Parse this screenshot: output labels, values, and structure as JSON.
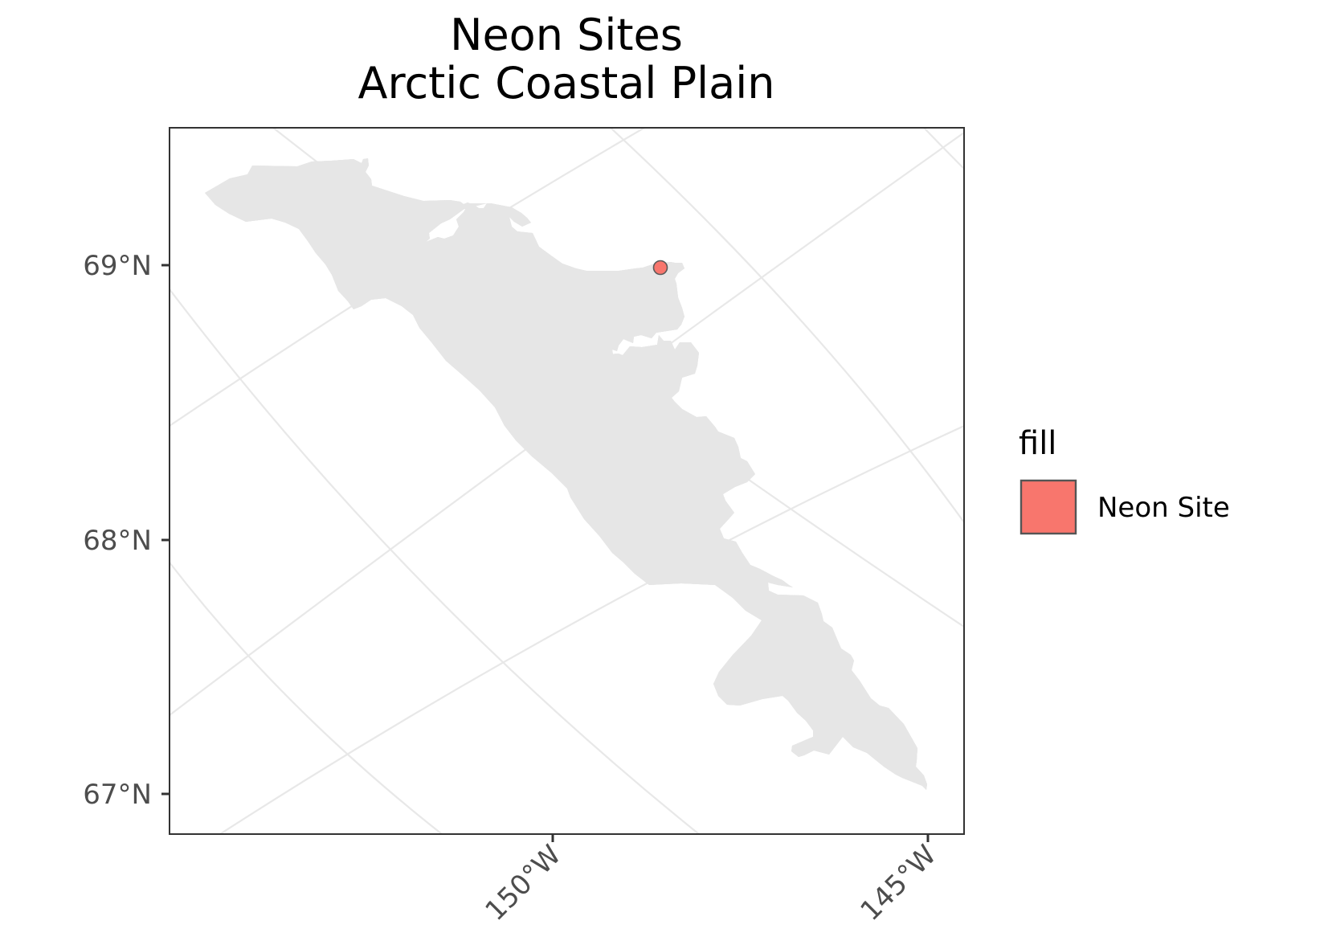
{
  "title": {
    "line1": "Neon Sites",
    "line2": "Arctic Coastal Plain"
  },
  "axes": {
    "y_ticks": [
      "69°N",
      "68°N",
      "67°N"
    ],
    "x_ticks": [
      "150°W",
      "145°W"
    ]
  },
  "legend": {
    "title": "fill",
    "items": [
      {
        "label": "Neon Site",
        "color": "#F8766D"
      }
    ]
  },
  "colors": {
    "region_fill": "#e6e6e6",
    "region_stroke": "#5a5a5a",
    "grid": "#e8e8e8",
    "site_point": "#F8766D"
  }
}
